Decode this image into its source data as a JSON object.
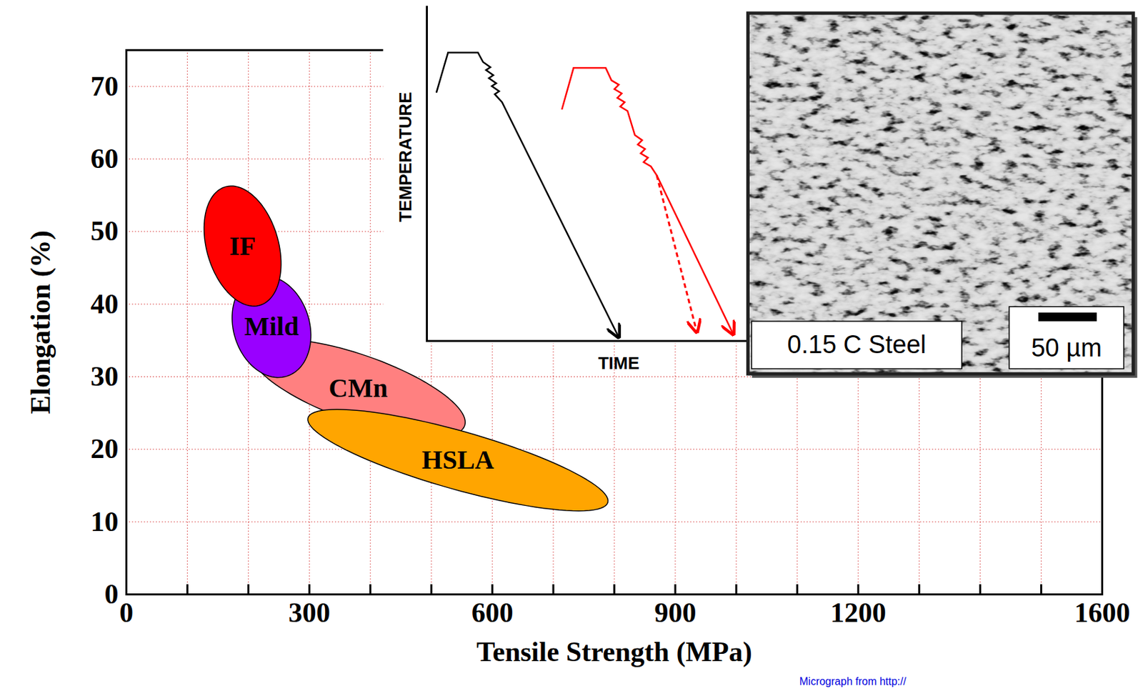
{
  "chart_data": {
    "type": "region",
    "x_label": "Tensile Strength (MPa)",
    "y_label": "Elongation (%)",
    "xlim": [
      0,
      1600
    ],
    "ylim": [
      0,
      75
    ],
    "xticks": [
      0,
      300,
      600,
      900,
      1200,
      1600
    ],
    "xticks_minor": [
      100,
      200,
      400,
      500,
      700,
      800,
      1000,
      1100,
      1300,
      1400,
      1500
    ],
    "yticks": [
      0,
      10,
      20,
      30,
      40,
      50,
      60,
      70
    ],
    "grid": true,
    "regions": [
      {
        "name": "CMn",
        "color": "#ff8080",
        "major_axis": [
          [
            205.3,
            33.5
          ],
          [
            554.9,
            23.3
          ]
        ],
        "minor_axis": [
          [
            395.9,
            32.8
          ],
          [
            364.3,
            24.0
          ]
        ]
      },
      {
        "name": "HSLA",
        "color": "#ffa500",
        "major_axis": [
          [
            297.7,
            24.3
          ],
          [
            789.5,
            12.7
          ]
        ],
        "minor_axis": [
          [
            554.9,
            22.4
          ],
          [
            532.3,
            14.6
          ]
        ]
      },
      {
        "name": "Mild",
        "color": "#9900ff",
        "major_axis": [
          [
            208.6,
            43.6
          ],
          [
            267.3,
            30.2
          ]
        ],
        "minor_axis": [
          [
            295.5,
            39.0
          ],
          [
            180.4,
            34.9
          ]
        ]
      },
      {
        "name": "IF",
        "color": "#ff0000",
        "major_axis": [
          [
            160.0,
            56.1
          ],
          [
            221.0,
            39.9
          ]
        ],
        "minor_axis": [
          [
            245.9,
            49.7
          ],
          [
            135.3,
            46.3
          ]
        ]
      }
    ]
  },
  "inset_diagram": {
    "x_label": "TIME",
    "y_label": "TEMPERATURE"
  },
  "micrograph": {
    "label": "0.15 C Steel",
    "scale_bar": "50 µm"
  },
  "caption": "Micrograph from http://"
}
